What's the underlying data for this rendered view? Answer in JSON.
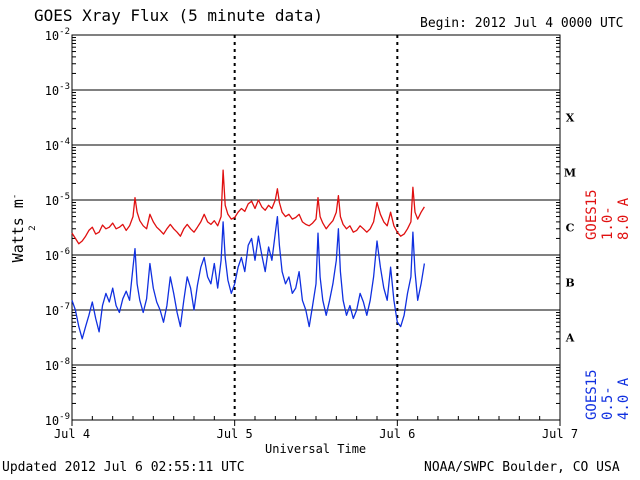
{
  "title": "GOES Xray Flux (5 minute data)",
  "begin_label": "Begin:  2012 Jul 4 0000 UTC",
  "updated_label": "Updated 2012 Jul  6 02:55:11 UTC",
  "credit_label": "NOAA/SWPC Boulder, CO USA",
  "colors": {
    "long": "#e01010",
    "short": "#1030e0"
  },
  "chart_data": {
    "type": "line",
    "xlabel": "Universal Time",
    "ylabel": "Watts m",
    "ylabel_sup": "-2",
    "yscale": "log",
    "ylim": [
      1e-09,
      0.01
    ],
    "xlim": [
      0,
      72
    ],
    "x_unit": "hours since 2012 Jul 4 0000 UTC",
    "x_ticks": [
      {
        "x": 0,
        "label": "Jul 4"
      },
      {
        "x": 24,
        "label": "Jul 5"
      },
      {
        "x": 48,
        "label": "Jul 6"
      },
      {
        "x": 72,
        "label": "Jul 7"
      }
    ],
    "y_ticks": [
      {
        "exp": -2,
        "label": "10",
        "sup": "-2"
      },
      {
        "exp": -3,
        "label": "10",
        "sup": "-3"
      },
      {
        "exp": -4,
        "label": "10",
        "sup": "-4"
      },
      {
        "exp": -5,
        "label": "10",
        "sup": "-5"
      },
      {
        "exp": -6,
        "label": "10",
        "sup": "-6"
      },
      {
        "exp": -7,
        "label": "10",
        "sup": "-7"
      },
      {
        "exp": -8,
        "label": "10",
        "sup": "-8"
      },
      {
        "exp": -9,
        "label": "10",
        "sup": "-9"
      }
    ],
    "flare_classes": [
      {
        "label": "X",
        "exp": -4
      },
      {
        "label": "M",
        "exp": -5
      },
      {
        "label": "C",
        "exp": -6
      },
      {
        "label": "B",
        "exp": -7
      },
      {
        "label": "A",
        "exp": -8
      }
    ],
    "series": [
      {
        "name": "GOES15 1.0-8.0 A",
        "color": "#e01010",
        "points": [
          [
            0,
            2.5e-06
          ],
          [
            0.5,
            2e-06
          ],
          [
            1,
            1.6e-06
          ],
          [
            1.5,
            1.8e-06
          ],
          [
            2,
            2.2e-06
          ],
          [
            2.5,
            2.8e-06
          ],
          [
            3,
            3.2e-06
          ],
          [
            3.5,
            2.4e-06
          ],
          [
            4,
            2.6e-06
          ],
          [
            4.5,
            3.5e-06
          ],
          [
            5,
            3e-06
          ],
          [
            5.5,
            3.2e-06
          ],
          [
            6,
            3.8e-06
          ],
          [
            6.5,
            3e-06
          ],
          [
            7,
            3.2e-06
          ],
          [
            7.5,
            3.6e-06
          ],
          [
            8,
            2.8e-06
          ],
          [
            8.5,
            3.4e-06
          ],
          [
            9,
            5e-06
          ],
          [
            9.3,
            1.1e-05
          ],
          [
            9.6,
            6e-06
          ],
          [
            10,
            4.2e-06
          ],
          [
            10.5,
            3.4e-06
          ],
          [
            11,
            3e-06
          ],
          [
            11.5,
            5.5e-06
          ],
          [
            12,
            4e-06
          ],
          [
            12.5,
            3.2e-06
          ],
          [
            13,
            2.8e-06
          ],
          [
            13.5,
            2.4e-06
          ],
          [
            14,
            3e-06
          ],
          [
            14.5,
            3.6e-06
          ],
          [
            15,
            3e-06
          ],
          [
            15.5,
            2.6e-06
          ],
          [
            16,
            2.2e-06
          ],
          [
            16.5,
            3e-06
          ],
          [
            17,
            3.6e-06
          ],
          [
            17.5,
            3e-06
          ],
          [
            18,
            2.6e-06
          ],
          [
            18.5,
            3.2e-06
          ],
          [
            19,
            4e-06
          ],
          [
            19.5,
            5.5e-06
          ],
          [
            20,
            4e-06
          ],
          [
            20.5,
            3.6e-06
          ],
          [
            21,
            4.2e-06
          ],
          [
            21.5,
            3.4e-06
          ],
          [
            22,
            5e-06
          ],
          [
            22.3,
            3.5e-05
          ],
          [
            22.6,
            8e-06
          ],
          [
            23,
            5.5e-06
          ],
          [
            23.5,
            4.5e-06
          ],
          [
            24,
            4.8e-06
          ],
          [
            24.5,
            6e-06
          ],
          [
            25,
            7e-06
          ],
          [
            25.5,
            6.2e-06
          ],
          [
            26,
            8.5e-06
          ],
          [
            26.5,
            9.5e-06
          ],
          [
            27,
            7e-06
          ],
          [
            27.5,
            1e-05
          ],
          [
            28,
            7.5e-06
          ],
          [
            28.5,
            6.5e-06
          ],
          [
            29,
            8e-06
          ],
          [
            29.5,
            7e-06
          ],
          [
            30,
            1e-05
          ],
          [
            30.3,
            1.6e-05
          ],
          [
            30.6,
            9e-06
          ],
          [
            31,
            6e-06
          ],
          [
            31.5,
            5e-06
          ],
          [
            32,
            5.5e-06
          ],
          [
            32.5,
            4.5e-06
          ],
          [
            33,
            4.8e-06
          ],
          [
            33.5,
            5.5e-06
          ],
          [
            34,
            4e-06
          ],
          [
            34.5,
            3.6e-06
          ],
          [
            35,
            3.4e-06
          ],
          [
            35.5,
            3.8e-06
          ],
          [
            36,
            4.5e-06
          ],
          [
            36.3,
            1.1e-05
          ],
          [
            36.6,
            5e-06
          ],
          [
            37,
            3.8e-06
          ],
          [
            37.5,
            3e-06
          ],
          [
            38,
            3.6e-06
          ],
          [
            38.5,
            4.2e-06
          ],
          [
            39,
            6e-06
          ],
          [
            39.3,
            1.2e-05
          ],
          [
            39.6,
            5e-06
          ],
          [
            40,
            3.6e-06
          ],
          [
            40.5,
            3e-06
          ],
          [
            41,
            3.4e-06
          ],
          [
            41.5,
            2.6e-06
          ],
          [
            42,
            2.8e-06
          ],
          [
            42.5,
            3.4e-06
          ],
          [
            43,
            3e-06
          ],
          [
            43.5,
            2.6e-06
          ],
          [
            44,
            3e-06
          ],
          [
            44.5,
            4e-06
          ],
          [
            45,
            9e-06
          ],
          [
            45.5,
            5.5e-06
          ],
          [
            46,
            4e-06
          ],
          [
            46.5,
            3.4e-06
          ],
          [
            47,
            6e-06
          ],
          [
            47.5,
            3.4e-06
          ],
          [
            48,
            2.6e-06
          ],
          [
            48.5,
            2.2e-06
          ],
          [
            49,
            2.4e-06
          ],
          [
            49.5,
            3e-06
          ],
          [
            50,
            4e-06
          ],
          [
            50.3,
            1.7e-05
          ],
          [
            50.6,
            6e-06
          ],
          [
            51,
            4.5e-06
          ],
          [
            51.5,
            6e-06
          ],
          [
            52,
            7.5e-06
          ]
        ]
      },
      {
        "name": "GOES15 0.5-4.0 A",
        "color": "#1030e0",
        "points": [
          [
            0,
            1.5e-07
          ],
          [
            0.5,
            1e-07
          ],
          [
            1,
            5e-08
          ],
          [
            1.5,
            3e-08
          ],
          [
            2,
            5e-08
          ],
          [
            2.5,
            8e-08
          ],
          [
            3,
            1.4e-07
          ],
          [
            3.5,
            7e-08
          ],
          [
            4,
            4e-08
          ],
          [
            4.5,
            1.2e-07
          ],
          [
            5,
            2e-07
          ],
          [
            5.5,
            1.4e-07
          ],
          [
            6,
            2.5e-07
          ],
          [
            6.5,
            1.2e-07
          ],
          [
            7,
            9e-08
          ],
          [
            7.5,
            1.6e-07
          ],
          [
            8,
            2.2e-07
          ],
          [
            8.5,
            1.5e-07
          ],
          [
            9,
            6e-07
          ],
          [
            9.3,
            1.3e-06
          ],
          [
            9.6,
            3e-07
          ],
          [
            10,
            1.5e-07
          ],
          [
            10.5,
            9e-08
          ],
          [
            11,
            1.6e-07
          ],
          [
            11.5,
            7e-07
          ],
          [
            12,
            2.5e-07
          ],
          [
            12.5,
            1.4e-07
          ],
          [
            13,
            1e-07
          ],
          [
            13.5,
            6e-08
          ],
          [
            14,
            1.2e-07
          ],
          [
            14.5,
            4e-07
          ],
          [
            15,
            2e-07
          ],
          [
            15.5,
            9e-08
          ],
          [
            16,
            5e-08
          ],
          [
            16.5,
            1.5e-07
          ],
          [
            17,
            4e-07
          ],
          [
            17.5,
            2.5e-07
          ],
          [
            18,
            1e-07
          ],
          [
            18.5,
            2.8e-07
          ],
          [
            19,
            6e-07
          ],
          [
            19.5,
            9e-07
          ],
          [
            20,
            4e-07
          ],
          [
            20.5,
            3e-07
          ],
          [
            21,
            7e-07
          ],
          [
            21.5,
            2.5e-07
          ],
          [
            22,
            8e-07
          ],
          [
            22.3,
            4e-06
          ],
          [
            22.6,
            9e-07
          ],
          [
            23,
            3.5e-07
          ],
          [
            23.5,
            2e-07
          ],
          [
            24,
            3e-07
          ],
          [
            24.5,
            6e-07
          ],
          [
            25,
            9e-07
          ],
          [
            25.5,
            5e-07
          ],
          [
            26,
            1.5e-06
          ],
          [
            26.5,
            2e-06
          ],
          [
            27,
            8e-07
          ],
          [
            27.5,
            2.2e-06
          ],
          [
            28,
            1e-06
          ],
          [
            28.5,
            5e-07
          ],
          [
            29,
            1.4e-06
          ],
          [
            29.5,
            8e-07
          ],
          [
            30,
            2.5e-06
          ],
          [
            30.3,
            5e-06
          ],
          [
            30.6,
            1.5e-06
          ],
          [
            31,
            5e-07
          ],
          [
            31.5,
            3e-07
          ],
          [
            32,
            4e-07
          ],
          [
            32.5,
            2e-07
          ],
          [
            33,
            2.5e-07
          ],
          [
            33.5,
            5e-07
          ],
          [
            34,
            1.5e-07
          ],
          [
            34.5,
            1e-07
          ],
          [
            35,
            5e-08
          ],
          [
            35.5,
            1.2e-07
          ],
          [
            36,
            3e-07
          ],
          [
            36.3,
            2.5e-06
          ],
          [
            36.6,
            4e-07
          ],
          [
            37,
            1.5e-07
          ],
          [
            37.5,
            8e-08
          ],
          [
            38,
            1.5e-07
          ],
          [
            38.5,
            3e-07
          ],
          [
            39,
            8e-07
          ],
          [
            39.3,
            3e-06
          ],
          [
            39.6,
            5e-07
          ],
          [
            40,
            1.5e-07
          ],
          [
            40.5,
            8e-08
          ],
          [
            41,
            1.2e-07
          ],
          [
            41.5,
            7e-08
          ],
          [
            42,
            1e-07
          ],
          [
            42.5,
            2e-07
          ],
          [
            43,
            1.4e-07
          ],
          [
            43.5,
            8e-08
          ],
          [
            44,
            1.5e-07
          ],
          [
            44.5,
            4e-07
          ],
          [
            45,
            1.8e-06
          ],
          [
            45.5,
            6e-07
          ],
          [
            46,
            2.5e-07
          ],
          [
            46.5,
            1.5e-07
          ],
          [
            47,
            6e-07
          ],
          [
            47.5,
            1.5e-07
          ],
          [
            48,
            6e-08
          ],
          [
            48.5,
            5e-08
          ],
          [
            49,
            8e-08
          ],
          [
            49.5,
            2e-07
          ],
          [
            50,
            4e-07
          ],
          [
            50.3,
            2.6e-06
          ],
          [
            50.6,
            5e-07
          ],
          [
            51,
            1.5e-07
          ],
          [
            51.5,
            3e-07
          ],
          [
            52,
            7e-07
          ]
        ]
      }
    ]
  }
}
